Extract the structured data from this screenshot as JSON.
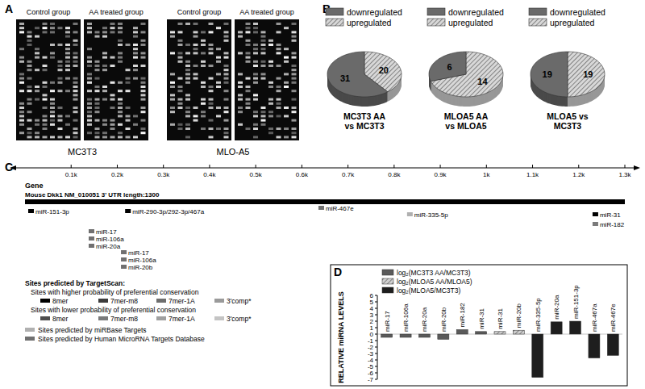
{
  "panel_labels": [
    "A",
    "B",
    "C",
    "D"
  ],
  "panel_a": {
    "cell_lines": [
      {
        "name": "MC3T3",
        "groups": [
          "Control group",
          "AA treated group"
        ]
      },
      {
        "name": "MLO-A5",
        "groups": [
          "Control group",
          "AA treated group"
        ]
      }
    ]
  },
  "chart_data": [
    {
      "type": "pie",
      "title": "MC3T3 AA\nvs MC3T3",
      "categories": [
        "downregulated",
        "upregulated"
      ],
      "values": [
        31,
        20
      ],
      "colors": [
        "#6a6a6a",
        "#d8d8d8"
      ],
      "data_labels": true,
      "legend": "top"
    },
    {
      "type": "pie",
      "title": "MLOA5 AA\nvs MLOA5",
      "categories": [
        "downregulated",
        "upregulated"
      ],
      "values": [
        6,
        14
      ],
      "colors": [
        "#6a6a6a",
        "#d8d8d8"
      ],
      "data_labels": true,
      "legend": "top"
    },
    {
      "type": "pie",
      "title": "MLOA5 vs\nMC3T3",
      "categories": [
        "downregulated",
        "upregulated"
      ],
      "values": [
        19,
        19
      ],
      "colors": [
        "#6a6a6a",
        "#d8d8d8"
      ],
      "data_labels": true,
      "legend": "top"
    },
    {
      "type": "bar",
      "y_label": "RELATIVE miRNA LEVELS",
      "categories": [
        "miR-17",
        "miR-106a",
        "miR-20a",
        "miR-20b",
        "miR-182",
        "miR-31",
        "miR-31",
        "miR-20b",
        "miR-335-5p",
        "miR-20a",
        "miR-151-3p",
        "miR-467a",
        "miR-467e"
      ],
      "series": [
        {
          "name": "log₂(MC3T3 AA/MC3T3)",
          "color": "#5a5a5a",
          "values": [
            -0.5,
            -0.5,
            -0.5,
            -0.8,
            0.7,
            0.4,
            null,
            null,
            null,
            null,
            null,
            null,
            null
          ]
        },
        {
          "name": "log₂(MLOA5 AA/MLOA5)",
          "color": "#d0d0d0",
          "values": [
            null,
            null,
            null,
            null,
            null,
            null,
            0.4,
            0.6,
            null,
            null,
            null,
            null,
            null
          ]
        },
        {
          "name": "log₂(MLOA5/MC3T3)",
          "color": "#1e1e1e",
          "values": [
            null,
            null,
            null,
            null,
            null,
            null,
            null,
            null,
            -6.7,
            1.9,
            2.0,
            -3.7,
            -3.3
          ]
        }
      ],
      "ylim": [
        -7,
        6
      ],
      "yticks": [
        -7,
        -6,
        -5,
        -4,
        -3,
        -2,
        -1,
        0,
        1,
        2,
        3,
        4,
        5,
        6
      ],
      "legend": "top-left",
      "grid": false
    }
  ],
  "panel_c": {
    "xlim": [
      0,
      1300
    ],
    "xticks": [
      {
        "value": 100,
        "label": "0.1k"
      },
      {
        "value": 200,
        "label": "0.2k"
      },
      {
        "value": 300,
        "label": "0.3k"
      },
      {
        "value": 400,
        "label": "0.4k"
      },
      {
        "value": 500,
        "label": "0.5k"
      },
      {
        "value": 600,
        "label": "0.6k"
      },
      {
        "value": 700,
        "label": "0.7k"
      },
      {
        "value": 800,
        "label": "0.8k"
      },
      {
        "value": 900,
        "label": "0.9k"
      },
      {
        "value": 1000,
        "label": "1k"
      },
      {
        "value": 1100,
        "label": "1.1k"
      },
      {
        "value": 1200,
        "label": "1.2k"
      },
      {
        "value": 1300,
        "label": "1.3k"
      }
    ],
    "gene_label": "Gene",
    "gene_description": "Mouse Dkk1 NM_010051 3' UTR length:1300",
    "sites": [
      {
        "label": "miR-151-3p",
        "position": 7,
        "color": "#000000"
      },
      {
        "label": "miR-290-3p/292-3p/467a",
        "position": 217,
        "color": "#000000"
      },
      {
        "label": "miR-17",
        "position": 138,
        "color": "#707070"
      },
      {
        "label": "miR-106a",
        "position": 138,
        "color": "#707070"
      },
      {
        "label": "miR-20a",
        "position": 138,
        "color": "#707070"
      },
      {
        "label": "miR-17",
        "position": 208,
        "color": "#707070"
      },
      {
        "label": "miR-106a",
        "position": 208,
        "color": "#707070"
      },
      {
        "label": "miR-20b",
        "position": 208,
        "color": "#707070"
      },
      {
        "label": "miR-467e",
        "position": 636,
        "color": "#707070"
      },
      {
        "label": "miR-335-5p",
        "position": 828,
        "color": "#b0b0b0"
      },
      {
        "label": "miR-31",
        "position": 1230,
        "color": "#000000"
      },
      {
        "label": "miR-182",
        "position": 1230,
        "color": "#7a7a7a"
      }
    ],
    "legend": {
      "title": "Sites predicted by TargetScan:",
      "groups": [
        {
          "label": "Sites with higher probability of preferential conservation",
          "types": [
            {
              "label": "8mer",
              "color": "#000000"
            },
            {
              "label": "7mer-m8",
              "color": "#3c3c3c"
            },
            {
              "label": "7mer-1A",
              "color": "#6e6e6e"
            },
            {
              "label": "3'comp*",
              "color": "#9a9a9a"
            }
          ]
        },
        {
          "label": "Sites with lower probability of preferential conservation",
          "types": [
            {
              "label": "8mer",
              "color": "#4d4d4d"
            },
            {
              "label": "7mer-m8",
              "color": "#7a7a7a"
            },
            {
              "label": "7mer-1A",
              "color": "#a0a0a0"
            },
            {
              "label": "3'comp*",
              "color": "#c4c4c4"
            }
          ]
        }
      ],
      "others": [
        {
          "label": "Sites predicted by miRBase Targets",
          "color": "#b0b0b0"
        },
        {
          "label": "Sites predicted by Human MicroRNA Targets Database",
          "color": "#707070"
        }
      ]
    }
  }
}
